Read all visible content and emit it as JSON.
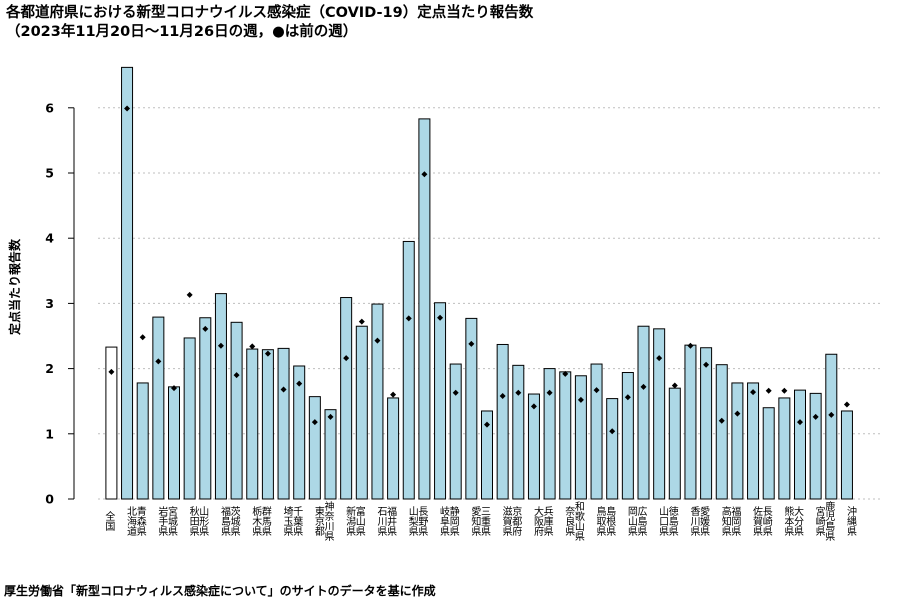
{
  "title_line1": "各都道府県における新型コロナウイルス感染症（COVID-19）定点当たり報告数",
  "title_line2": "（2023年11月20日〜11月26日の週，●は前の週）",
  "footnote": "厚生労働省「新型コロナウィルス感染症について」のサイトのデータを基に作成",
  "colors": {
    "bar_fill": "#add8e6",
    "total_fill": "#ffffff",
    "stroke": "#000000",
    "grid": "#bfbfbf"
  },
  "chart_data": {
    "type": "bar",
    "title": "各都道府県における新型コロナウイルス感染症（COVID-19）定点当たり報告数",
    "subtitle": "（2023年11月20日〜11月26日の週，●は前の週）",
    "xlabel": "",
    "ylabel": "定点当たり報告数",
    "ylim": [
      0,
      6.6
    ],
    "yticks": [
      0,
      1,
      2,
      3,
      4,
      5,
      6
    ],
    "grid": true,
    "categories": [
      "全国",
      "北海道",
      "青森県",
      "岩手県",
      "宮城県",
      "秋田県",
      "山形県",
      "福島県",
      "茨城県",
      "栃木県",
      "群馬県",
      "埼玉県",
      "千葉県",
      "東京都",
      "神奈川県",
      "新潟県",
      "富山県",
      "石川県",
      "福井県",
      "山梨県",
      "長野県",
      "岐阜県",
      "静岡県",
      "愛知県",
      "三重県",
      "滋賀県",
      "京都府",
      "大阪府",
      "兵庫県",
      "奈良県",
      "和歌山県",
      "鳥取県",
      "島根県",
      "岡山県",
      "広島県",
      "山口県",
      "徳島県",
      "香川県",
      "愛媛県",
      "高知県",
      "福岡県",
      "佐賀県",
      "長崎県",
      "熊本県",
      "大分県",
      "宮崎県",
      "鹿児島県",
      "沖縄県"
    ],
    "series": [
      {
        "name": "今週",
        "values": [
          2.33,
          6.62,
          1.78,
          2.79,
          1.72,
          2.47,
          2.78,
          3.15,
          2.71,
          2.3,
          2.29,
          2.31,
          2.04,
          1.57,
          1.37,
          3.09,
          2.65,
          2.99,
          1.55,
          3.95,
          5.83,
          3.01,
          2.07,
          2.77,
          1.35,
          2.37,
          2.05,
          1.61,
          2.0,
          1.95,
          1.89,
          2.07,
          1.54,
          1.94,
          2.65,
          2.61,
          1.7,
          2.36,
          2.32,
          2.06,
          1.78,
          1.78,
          1.4,
          1.55,
          1.67,
          1.62,
          2.22,
          1.35
        ]
      },
      {
        "name": "前の週",
        "values": [
          1.95,
          5.99,
          2.48,
          2.11,
          1.7,
          3.13,
          2.61,
          2.35,
          1.9,
          2.34,
          2.23,
          1.68,
          1.77,
          1.18,
          1.26,
          2.16,
          2.72,
          2.43,
          1.6,
          2.77,
          4.98,
          2.78,
          1.63,
          2.38,
          1.14,
          1.58,
          1.63,
          1.42,
          1.63,
          1.92,
          1.52,
          1.67,
          1.04,
          1.56,
          1.72,
          2.16,
          1.74,
          2.35,
          2.06,
          1.2,
          1.31,
          1.64,
          1.66,
          1.66,
          1.18,
          1.26,
          1.29,
          1.45
        ]
      }
    ]
  }
}
